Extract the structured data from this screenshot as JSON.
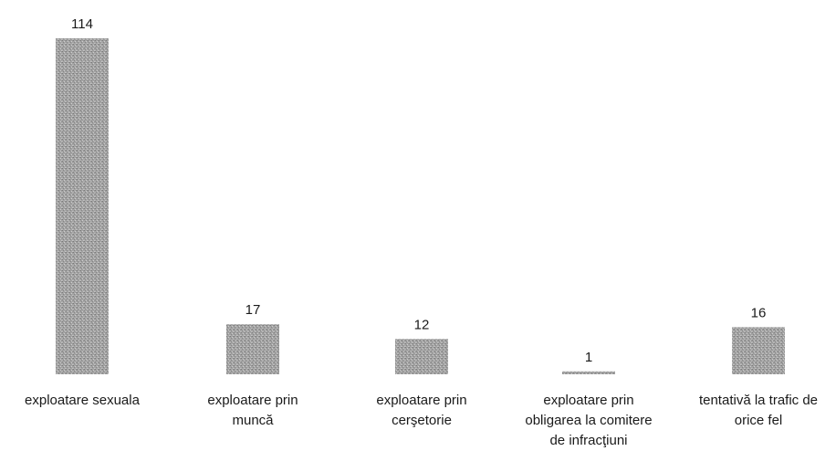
{
  "chart_data": {
    "type": "bar",
    "categories": [
      [
        "exploatare sexuala"
      ],
      [
        "exploatare prin",
        "muncă"
      ],
      [
        "exploatare prin",
        "cerşetorie"
      ],
      [
        "exploatare prin",
        "obligarea la comitere",
        "de infracţiuni"
      ],
      [
        "tentativă la trafic de",
        "orice fel"
      ]
    ],
    "values": [
      114,
      17,
      12,
      1,
      16
    ],
    "data_labels": [
      "114",
      "17",
      "12",
      "1",
      "16"
    ],
    "ylim": [
      0,
      114
    ],
    "bar_color": "#9a9a9a",
    "grid": false,
    "legend": false
  }
}
